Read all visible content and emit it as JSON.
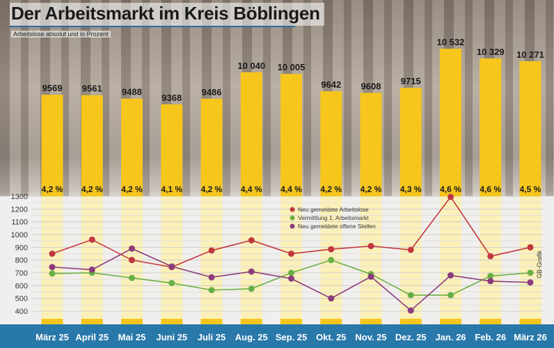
{
  "title": "Der Arbeitsmarkt im Kreis Böblingen",
  "subtitle": "Arbeitslose absolut und in Prozent",
  "credit": "GB-Grafik",
  "colors": {
    "bar": "#f6c61c",
    "bar_pale": "#fbf0b8",
    "red": "#c2373f",
    "green": "#68b045",
    "purple": "#8a3b7c",
    "band": "#2978aa"
  },
  "chart_data": [
    {
      "type": "bar",
      "title": "Arbeitslose absolut und in Prozent",
      "categories": [
        "März 25",
        "April 25",
        "Mai 25",
        "Juni 25",
        "Juli 25",
        "Aug. 25",
        "Sep. 25",
        "Okt. 25",
        "Nov. 25",
        "Dez. 25",
        "Jan. 26",
        "Feb. 26",
        "März 26"
      ],
      "values": [
        9569,
        9561,
        9488,
        9368,
        9486,
        10040,
        10005,
        9642,
        9608,
        9715,
        10532,
        10329,
        10271
      ],
      "value_labels": [
        "9569",
        "9561",
        "9488",
        "9368",
        "9486",
        "10 040",
        "10 005",
        "9642",
        "9608",
        "9715",
        "10 532",
        "10 329",
        "10 271"
      ],
      "percent_labels": [
        "4,2 %",
        "4,2 %",
        "4,2 %",
        "4,1 %",
        "4,2 %",
        "4,4 %",
        "4,4 %",
        "4,2 %",
        "4,2 %",
        "4,3 %",
        "4,6 %",
        "4,6 %",
        "4,5 %"
      ]
    },
    {
      "type": "line",
      "ylim": [
        400,
        1300
      ],
      "yticks": [
        "1300",
        "1200",
        "1100",
        "1000",
        "900",
        "800",
        "700",
        "600",
        "500",
        "400"
      ],
      "legend_position": "top-center",
      "series": [
        {
          "name": "Neu gemeldete Arbeitslose",
          "color": "#c2373f",
          "values": [
            850,
            960,
            800,
            745,
            875,
            955,
            850,
            885,
            910,
            880,
            1295,
            830,
            900
          ]
        },
        {
          "name": "Vermittlung  1. Arbeitsmarkt",
          "color": "#68b045",
          "values": [
            695,
            700,
            660,
            620,
            565,
            575,
            700,
            800,
            690,
            525,
            525,
            675,
            700
          ]
        },
        {
          "name": "Neu gemeldete offene Stellen",
          "color": "#8a3b7c",
          "values": [
            745,
            725,
            890,
            750,
            665,
            710,
            655,
            500,
            670,
            405,
            680,
            635,
            625
          ]
        }
      ]
    }
  ]
}
